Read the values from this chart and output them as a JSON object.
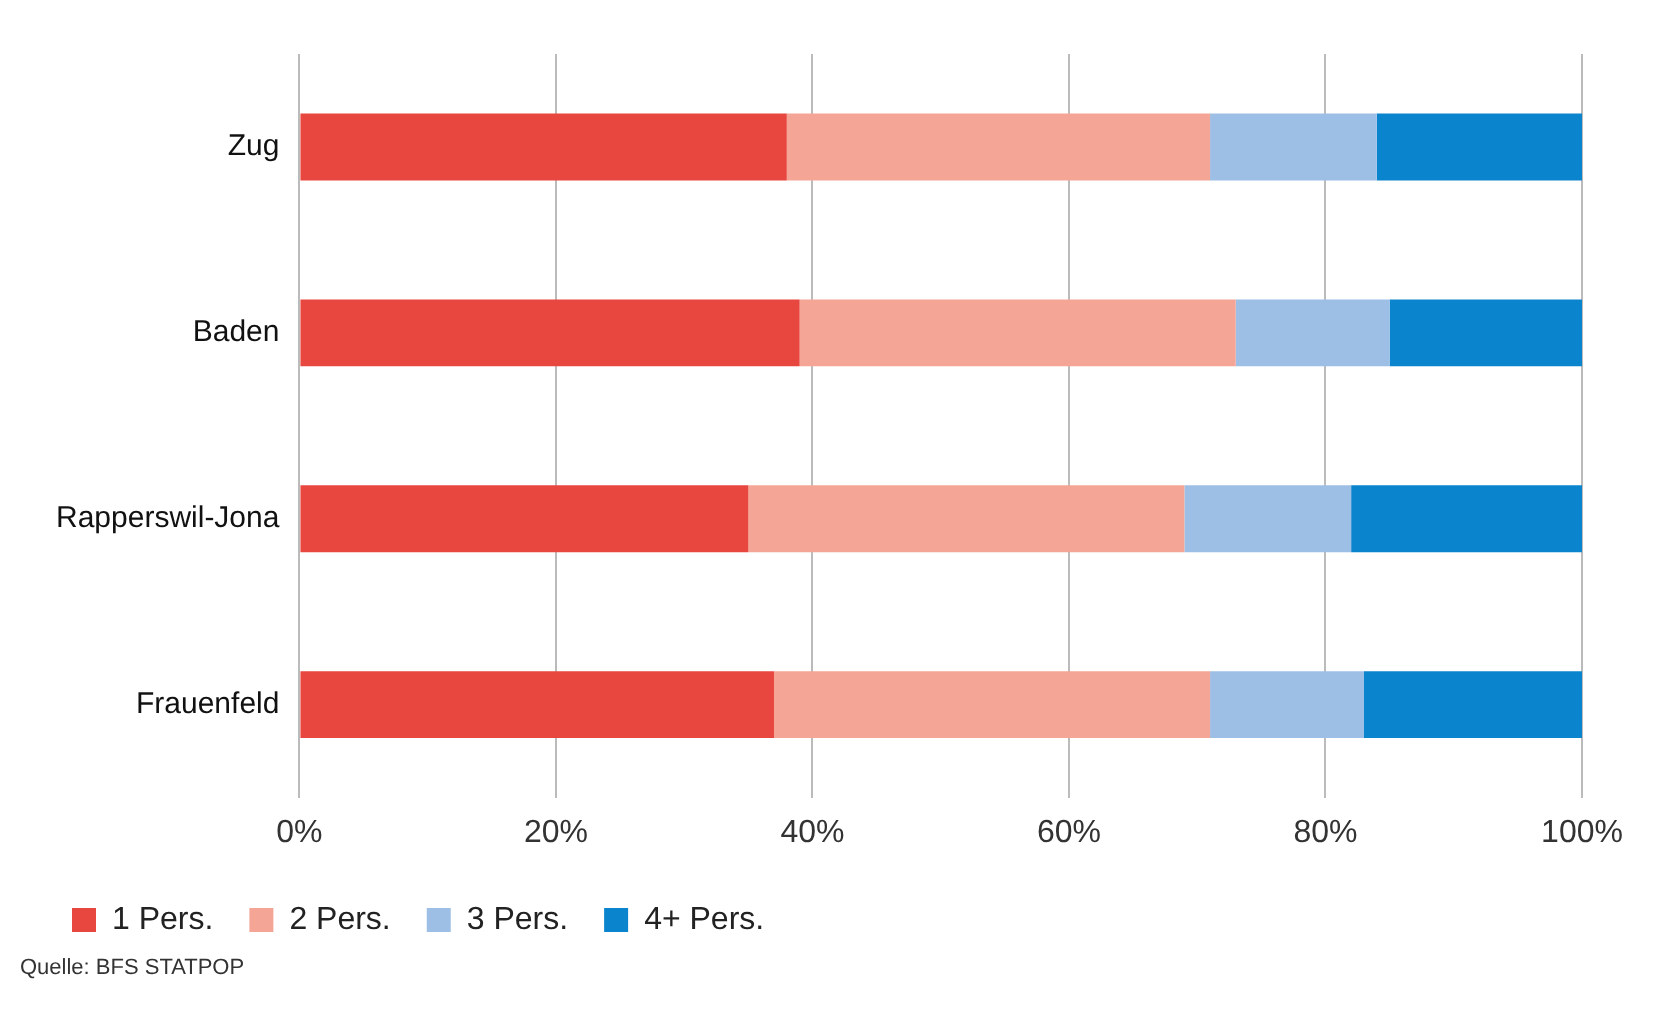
{
  "chart_data": {
    "type": "bar",
    "orientation": "horizontal",
    "stacked": true,
    "categories": [
      "Zug",
      "Baden",
      "Rapperswil-Jona",
      "Frauenfeld"
    ],
    "series": [
      {
        "name": "1 Pers.",
        "color": "#e8473f",
        "values": [
          38,
          39,
          35,
          37
        ]
      },
      {
        "name": "2 Pers.",
        "color": "#f4a596",
        "values": [
          33,
          34,
          34,
          34
        ]
      },
      {
        "name": "3 Pers.",
        "color": "#9dbfe6",
        "values": [
          13,
          12,
          13,
          12
        ]
      },
      {
        "name": "4+ Pers.",
        "color": "#0a84cc",
        "values": [
          16,
          15,
          18,
          17
        ]
      }
    ],
    "xlim": [
      0,
      100
    ],
    "xticks": [
      {
        "value": 0,
        "label": "0%"
      },
      {
        "value": 20,
        "label": "20%"
      },
      {
        "value": 40,
        "label": "40%"
      },
      {
        "value": 60,
        "label": "60%"
      },
      {
        "value": 80,
        "label": "80%"
      },
      {
        "value": 100,
        "label": "100%"
      }
    ],
    "grid": "x",
    "legend": "bottom left",
    "annotations": [
      "Quelle: BFS STATPOP"
    ]
  }
}
